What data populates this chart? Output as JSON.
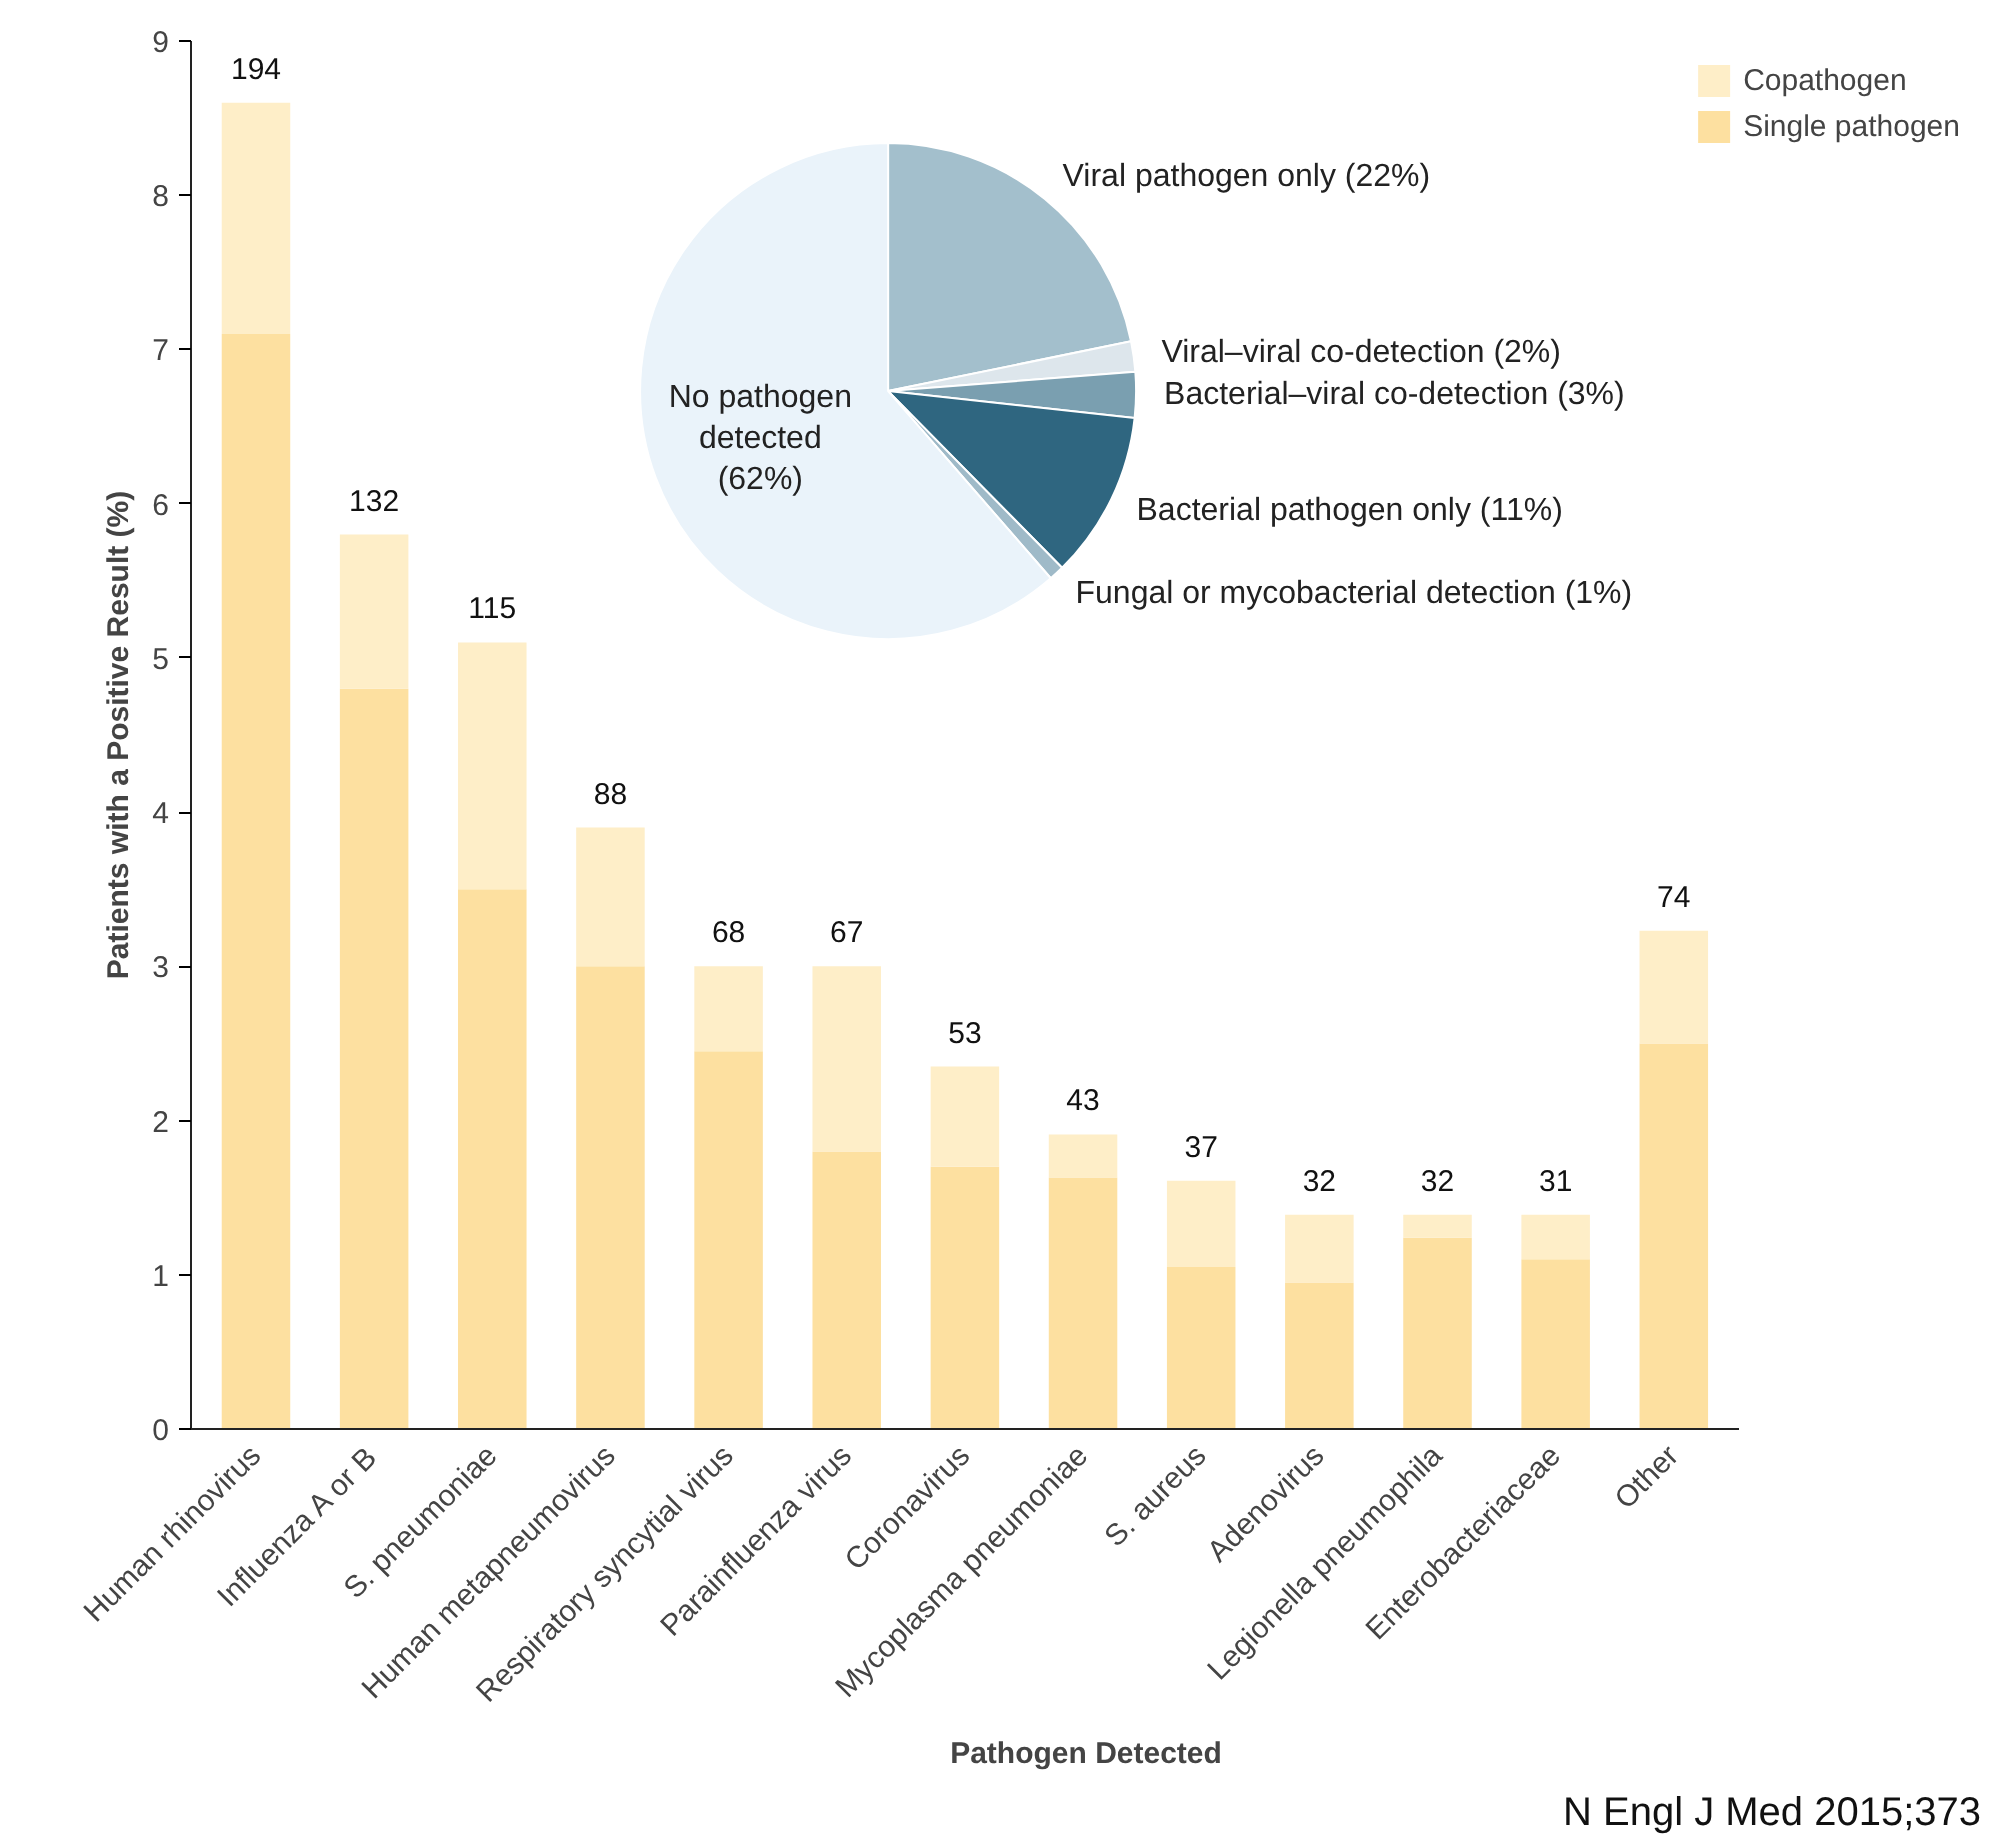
{
  "chart_data": [
    {
      "type": "bar",
      "stacked": true,
      "xlabel": "Pathogen Detected",
      "ylabel": "Patients with a Positive Result (%)",
      "categories": [
        "Human rhinovirus",
        "Influenza A or B",
        "S. pneumoniae",
        "Human metapneumovirus",
        "Respiratory syncytial virus",
        "Parainfluenza virus",
        "Coronavirus",
        "Mycoplasma pneumoniae",
        "S. aureus",
        "Adenovirus",
        "Legionella pneumophila",
        "Enterobacteriaceae",
        "Other"
      ],
      "series": [
        {
          "name": "Single pathogen",
          "color": "#fde0a0",
          "values": [
            7.1,
            4.8,
            3.5,
            3.0,
            2.45,
            1.8,
            1.7,
            1.63,
            1.05,
            0.95,
            1.24,
            1.1,
            2.5
          ]
        },
        {
          "name": "Copathogen",
          "color": "#feeec8",
          "values": [
            1.5,
            1.0,
            1.6,
            0.9,
            0.55,
            1.2,
            0.65,
            0.28,
            0.56,
            0.44,
            0.15,
            0.29,
            0.73
          ]
        }
      ],
      "ylim": [
        0,
        9
      ],
      "yticks": [
        0,
        1,
        2,
        3,
        4,
        5,
        6,
        7,
        8,
        9
      ],
      "grid": false,
      "legend": "top right",
      "annotations": [
        {
          "text": "194",
          "x": "Human rhinovirus",
          "y": 8.6
        },
        {
          "text": "132",
          "x": "Influenza A or B",
          "y": 5.8
        },
        {
          "text": "115",
          "x": "S. pneumoniae",
          "y": 5.1
        },
        {
          "text": "88",
          "x": "Human metapneumovirus",
          "y": 3.9
        },
        {
          "text": "68",
          "x": "Respiratory syncytial virus",
          "y": 3.0
        },
        {
          "text": "67",
          "x": "Parainfluenza virus",
          "y": 3.0
        },
        {
          "text": "53",
          "x": "Coronavirus",
          "y": 2.35
        },
        {
          "text": "43",
          "x": "Mycoplasma pneumoniae",
          "y": 1.91
        },
        {
          "text": "37",
          "x": "S. aureus",
          "y": 1.61
        },
        {
          "text": "32",
          "x": "Adenovirus",
          "y": 1.39
        },
        {
          "text": "32",
          "x": "Legionella pneumophila",
          "y": 1.39
        },
        {
          "text": "31",
          "x": "Enterobacteriaceae",
          "y": 1.39
        },
        {
          "text": "74",
          "x": "Other",
          "y": 3.23
        },
        "N Engl J Med 2015;373"
      ]
    },
    {
      "type": "pie",
      "categories": [
        "Viral pathogen only",
        "Viral–viral co-detection",
        "Bacterial–viral co-detection",
        "Bacterial pathogen only",
        "Fungal or mycobacterial detection",
        "No pathogen detected"
      ],
      "values": [
        22,
        2,
        3,
        11,
        1,
        62
      ],
      "value_labels": [
        "(22%)",
        "(2%)",
        "(3%)",
        "(11%)",
        "(1%)",
        "(62%)"
      ],
      "colors": [
        "#a3bfcc",
        "#dde6ec",
        "#7a9fb0",
        "#2f6680",
        "#9fbac8",
        "#eaf3fa"
      ]
    }
  ]
}
